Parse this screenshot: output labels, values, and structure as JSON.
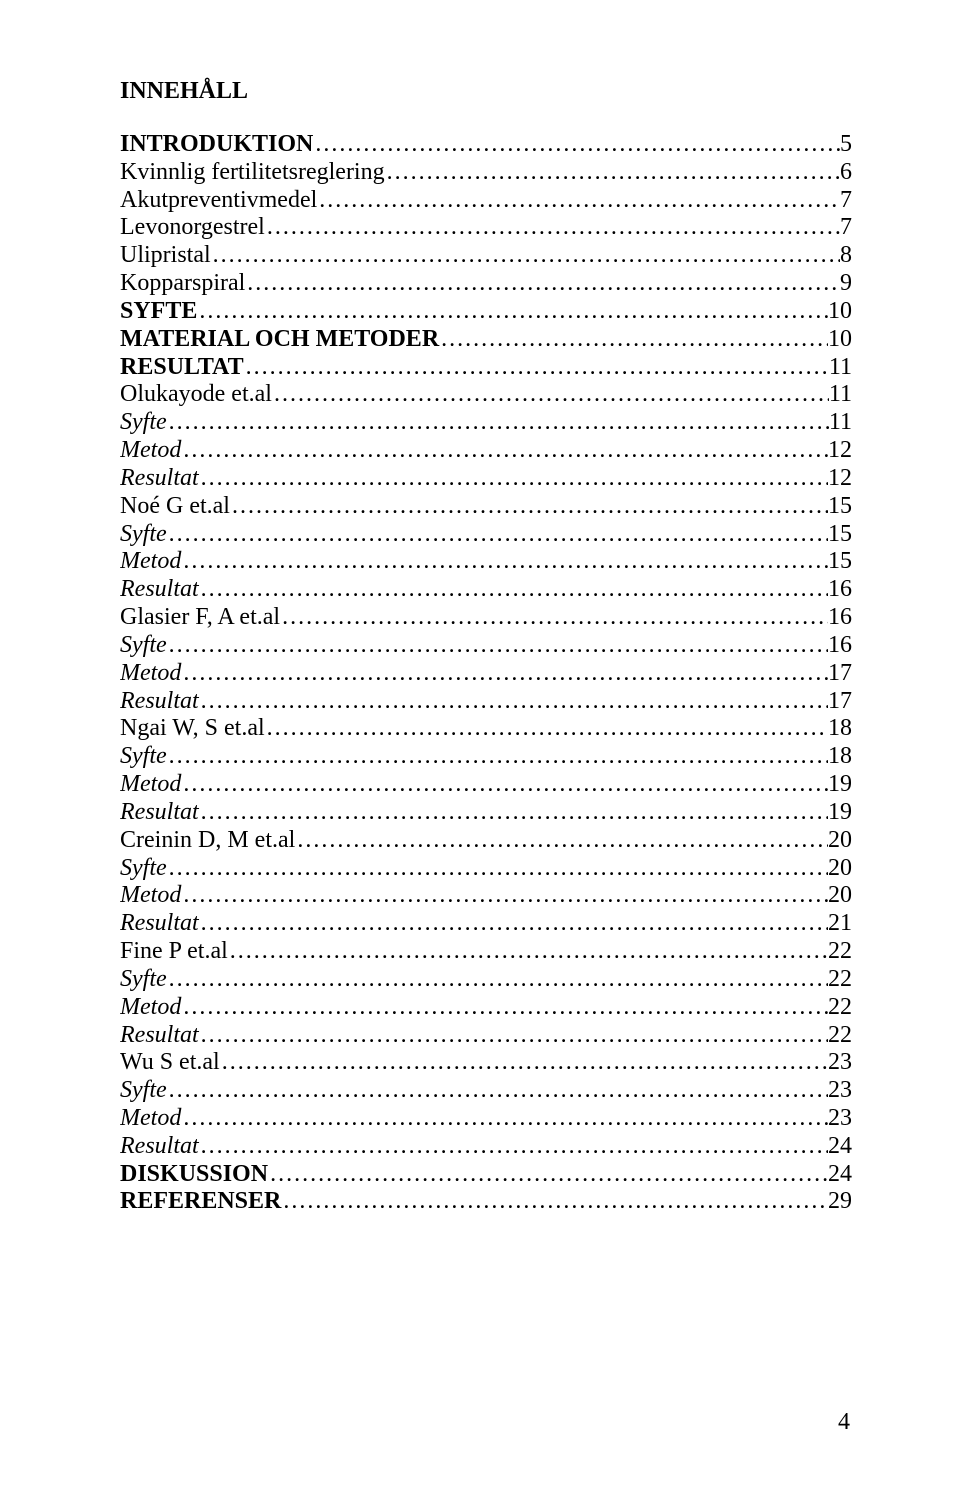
{
  "title": "INNEHÅLL",
  "page_number": "4",
  "typography": {
    "font_family": "Times New Roman",
    "font_size_pt": 12,
    "title_weight": "bold",
    "text_color": "#000000",
    "background_color": "#ffffff"
  },
  "toc": [
    {
      "label": "INTRODUKTION",
      "page": "5",
      "bold": true,
      "italic": false
    },
    {
      "label": "Kvinnlig fertilitetsreglering",
      "page": "6",
      "bold": false,
      "italic": false
    },
    {
      "label": "Akutpreventivmedel",
      "page": "7",
      "bold": false,
      "italic": false
    },
    {
      "label": "Levonorgestrel",
      "page": "7",
      "bold": false,
      "italic": false
    },
    {
      "label": "Ulipristal",
      "page": "8",
      "bold": false,
      "italic": false
    },
    {
      "label": "Kopparspiral",
      "page": "9",
      "bold": false,
      "italic": false
    },
    {
      "label": "SYFTE",
      "page": "10",
      "bold": true,
      "italic": false
    },
    {
      "label": "MATERIAL OCH METODER",
      "page": "10",
      "bold": true,
      "italic": false
    },
    {
      "label": "RESULTAT",
      "page": "11",
      "bold": true,
      "italic": false
    },
    {
      "label": "Olukayode et.al",
      "page": "11",
      "bold": false,
      "italic": false
    },
    {
      "label": "Syfte",
      "page": "11",
      "bold": false,
      "italic": true
    },
    {
      "label": "Metod",
      "page": "12",
      "bold": false,
      "italic": true
    },
    {
      "label": "Resultat",
      "page": "12",
      "bold": false,
      "italic": true
    },
    {
      "label": "Noé G et.al",
      "page": "15",
      "bold": false,
      "italic": false
    },
    {
      "label": "Syfte",
      "page": "15",
      "bold": false,
      "italic": true
    },
    {
      "label": "Metod",
      "page": "15",
      "bold": false,
      "italic": true
    },
    {
      "label": "Resultat",
      "page": "16",
      "bold": false,
      "italic": true
    },
    {
      "label": "Glasier F, A et.al",
      "page": "16",
      "bold": false,
      "italic": false
    },
    {
      "label": "Syfte",
      "page": "16",
      "bold": false,
      "italic": true
    },
    {
      "label": "Metod",
      "page": "17",
      "bold": false,
      "italic": true
    },
    {
      "label": "Resultat",
      "page": "17",
      "bold": false,
      "italic": true
    },
    {
      "label": "Ngai W, S et.al",
      "page": "18",
      "bold": false,
      "italic": false
    },
    {
      "label": "Syfte",
      "page": "18",
      "bold": false,
      "italic": true
    },
    {
      "label": "Metod",
      "page": "19",
      "bold": false,
      "italic": true
    },
    {
      "label": "Resultat",
      "page": "19",
      "bold": false,
      "italic": true
    },
    {
      "label": "Creinin D, M et.al",
      "page": "20",
      "bold": false,
      "italic": false
    },
    {
      "label": "Syfte",
      "page": "20",
      "bold": false,
      "italic": true
    },
    {
      "label": "Metod",
      "page": "20",
      "bold": false,
      "italic": true
    },
    {
      "label": "Resultat",
      "page": "21",
      "bold": false,
      "italic": true
    },
    {
      "label": "Fine P et.al",
      "page": "22",
      "bold": false,
      "italic": false
    },
    {
      "label": "Syfte",
      "page": "22",
      "bold": false,
      "italic": true
    },
    {
      "label": "Metod",
      "page": "22",
      "bold": false,
      "italic": true
    },
    {
      "label": "Resultat",
      "page": "22",
      "bold": false,
      "italic": true
    },
    {
      "label": "Wu S et.al",
      "page": "23",
      "bold": false,
      "italic": false
    },
    {
      "label": "Syfte",
      "page": "23",
      "bold": false,
      "italic": true
    },
    {
      "label": "Metod",
      "page": "23",
      "bold": false,
      "italic": true
    },
    {
      "label": "Resultat",
      "page": "24",
      "bold": false,
      "italic": true
    },
    {
      "label": "DISKUSSION",
      "page": "24",
      "bold": true,
      "italic": false
    },
    {
      "label": "REFERENSER",
      "page": "29",
      "bold": true,
      "italic": false
    }
  ]
}
